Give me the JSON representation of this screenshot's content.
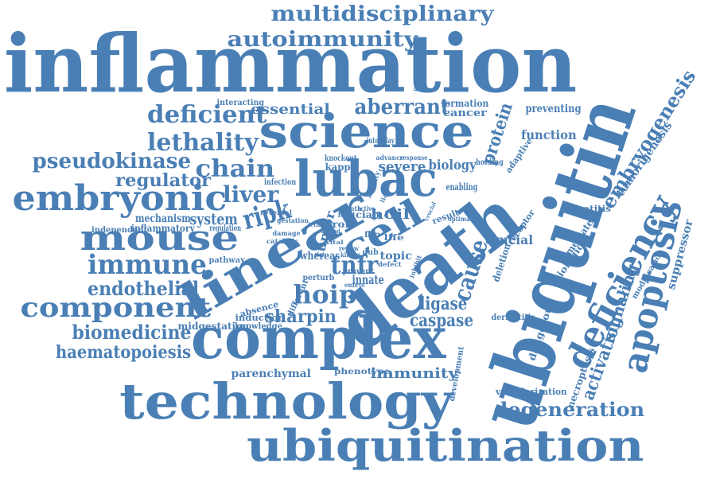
{
  "color": "#4a7fb5",
  "words": [
    "inflammation",
    "ubiquitin",
    "death",
    "complex",
    "technology",
    "ubiquitination",
    "science",
    "linear",
    "lubac",
    "cell",
    "deficiency",
    "apoptosis",
    "embryonic",
    "mouse",
    "component",
    "multidisciplinary",
    "autoimmunity",
    "deficient",
    "lethality",
    "pseudokinase",
    "chain",
    "regulator",
    "liver",
    "immune",
    "endothelial",
    "biomedicine",
    "haematopoiesis",
    "ripk",
    "hoip",
    "sharpin",
    "tnfr",
    "cause",
    "caspase",
    "ligase",
    "protein",
    "embryogenesis",
    "degeneration",
    "activation",
    "signaling",
    "aberrant",
    "essential",
    "tumorigenesis",
    "suppressor",
    "immunity",
    "parenchymal",
    "phenotype",
    "vascularization",
    "dangerous",
    "necroptosis",
    "midgestation",
    "knowledge",
    "induction",
    "absence",
    "crucial",
    "deletion",
    "mediated",
    "hepatitis",
    "biological",
    "function",
    "preventing",
    "formation",
    "cancer",
    "severe",
    "biology",
    "hoil",
    "kappa",
    "system",
    "mechanism",
    "inflammatory",
    "independent",
    "pathway",
    "innate",
    "topic",
    "dub",
    "prevent",
    "whereas",
    "tumor",
    "ciap",
    "role",
    "life",
    "flip",
    "modification",
    "development",
    "dermatitis",
    "interacting",
    "interplay",
    "knockout",
    "infection",
    "enabling",
    "holding",
    "adaptive",
    "receptor",
    "result",
    "regulatory",
    "reversal",
    "gestation",
    "damage",
    "catalytic",
    "regulation",
    "perturb",
    "embryo",
    "different",
    "review",
    "kinase",
    "defect",
    "inhibit",
    "activity",
    "liaison",
    "optimal",
    "month",
    "lead",
    "active",
    "crucial",
    "response",
    "advance",
    "vital",
    "lethal",
    "depend"
  ]
}
